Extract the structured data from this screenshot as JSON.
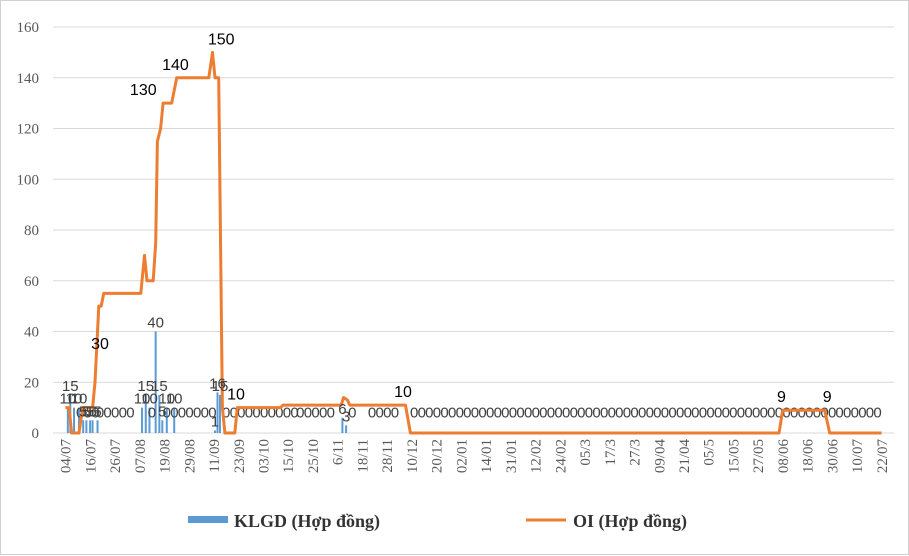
{
  "chart_data": {
    "type": "bar+line",
    "title": "",
    "xlabel": "",
    "ylabel": "",
    "ylim": [
      0,
      160
    ],
    "yticks": [
      0,
      20,
      40,
      60,
      80,
      100,
      120,
      140,
      160
    ],
    "grid": "horizontal",
    "legend_position": "bottom",
    "categories": [
      "04/07",
      "16/07",
      "26/07",
      "07/08",
      "19/08",
      "29/08",
      "11/09",
      "23/09",
      "03/10",
      "15/10",
      "25/10",
      "6/11",
      "18/11",
      "28/11",
      "10/12",
      "20/12",
      "02/01",
      "14/01",
      "31/01",
      "12/02",
      "24/02",
      "05/3",
      "17/3",
      "27/3",
      "09/04",
      "21/04",
      "05/5",
      "15/05",
      "27/05",
      "08/06",
      "18/06",
      "30/06",
      "10/07",
      "22/07"
    ],
    "colors": {
      "KLGD": "#5b9bd5",
      "OI": "#ed7d31",
      "grid": "#d9d9d9",
      "zero_label": "#595959"
    },
    "series": [
      {
        "name": "KLGD (Hợp đồng)",
        "type": "bar",
        "points": [
          {
            "x": 0.1,
            "y": 10
          },
          {
            "x": 0.2,
            "y": 15
          },
          {
            "x": 0.35,
            "y": 10
          },
          {
            "x": 0.55,
            "y": 10
          },
          {
            "x": 0.72,
            "y": 5
          },
          {
            "x": 0.85,
            "y": 5
          },
          {
            "x": 1.0,
            "y": 5
          },
          {
            "x": 1.1,
            "y": 5
          },
          {
            "x": 1.3,
            "y": 5
          },
          {
            "x": 3.1,
            "y": 10
          },
          {
            "x": 3.25,
            "y": 15
          },
          {
            "x": 3.4,
            "y": 10
          },
          {
            "x": 3.65,
            "y": 40
          },
          {
            "x": 3.8,
            "y": 15
          },
          {
            "x": 3.92,
            "y": 5
          },
          {
            "x": 4.1,
            "y": 10
          },
          {
            "x": 4.4,
            "y": 10
          },
          {
            "x": 6.05,
            "y": 1
          },
          {
            "x": 6.15,
            "y": 16
          },
          {
            "x": 6.25,
            "y": 15
          },
          {
            "x": 11.2,
            "y": 6
          },
          {
            "x": 11.35,
            "y": 3
          }
        ],
        "labels": [
          "10",
          "15",
          "10",
          "10",
          "5",
          "5",
          "5",
          "5",
          "5",
          "10",
          "15",
          "10",
          "40",
          "15",
          "5",
          "10",
          "10",
          "1",
          "16",
          "15",
          "6",
          "3"
        ]
      },
      {
        "name": "OI (Hợp đồng)",
        "type": "line",
        "points": [
          {
            "x": 0.0,
            "y": 10
          },
          {
            "x": 0.15,
            "y": 10
          },
          {
            "x": 0.25,
            "y": 0
          },
          {
            "x": 0.55,
            "y": 0
          },
          {
            "x": 0.7,
            "y": 10
          },
          {
            "x": 1.1,
            "y": 10
          },
          {
            "x": 1.2,
            "y": 20
          },
          {
            "x": 1.35,
            "y": 50
          },
          {
            "x": 1.45,
            "y": 50
          },
          {
            "x": 1.55,
            "y": 55
          },
          {
            "x": 3.05,
            "y": 55
          },
          {
            "x": 3.1,
            "y": 60
          },
          {
            "x": 3.2,
            "y": 70
          },
          {
            "x": 3.3,
            "y": 60
          },
          {
            "x": 3.55,
            "y": 60
          },
          {
            "x": 3.65,
            "y": 75
          },
          {
            "x": 3.72,
            "y": 115
          },
          {
            "x": 3.85,
            "y": 120
          },
          {
            "x": 3.95,
            "y": 130
          },
          {
            "x": 4.3,
            "y": 130
          },
          {
            "x": 4.5,
            "y": 140
          },
          {
            "x": 5.8,
            "y": 140
          },
          {
            "x": 5.95,
            "y": 150
          },
          {
            "x": 6.05,
            "y": 140
          },
          {
            "x": 6.2,
            "y": 140
          },
          {
            "x": 6.35,
            "y": 10
          },
          {
            "x": 6.45,
            "y": 0
          },
          {
            "x": 6.85,
            "y": 0
          },
          {
            "x": 6.95,
            "y": 10
          },
          {
            "x": 8.7,
            "y": 10
          },
          {
            "x": 8.8,
            "y": 11
          },
          {
            "x": 11.15,
            "y": 11
          },
          {
            "x": 11.25,
            "y": 14
          },
          {
            "x": 11.4,
            "y": 13
          },
          {
            "x": 11.5,
            "y": 11
          },
          {
            "x": 13.75,
            "y": 11
          },
          {
            "x": 13.95,
            "y": 0
          },
          {
            "x": 28.85,
            "y": 0
          },
          {
            "x": 29.0,
            "y": 9
          },
          {
            "x": 30.7,
            "y": 9
          },
          {
            "x": 30.9,
            "y": 0
          },
          {
            "x": 33.0,
            "y": 0
          }
        ],
        "labels": [
          {
            "text": "10",
            "x": 6.9,
            "y": 10
          },
          {
            "text": "30",
            "x": 1.4,
            "y": 30
          },
          {
            "text": "130",
            "x": 3.15,
            "y": 130
          },
          {
            "text": "140",
            "x": 4.45,
            "y": 140
          },
          {
            "text": "150",
            "x": 6.3,
            "y": 150
          },
          {
            "text": "10",
            "x": 13.65,
            "y": 11
          },
          {
            "text": "9",
            "x": 28.95,
            "y": 9
          },
          {
            "text": "9",
            "x": 30.8,
            "y": 9
          }
        ]
      }
    ],
    "zero_labels": {
      "text": "0",
      "segments": [
        [
          0.6,
          1.3
        ],
        [
          1.4,
          2.9
        ],
        [
          3.5,
          3.6
        ],
        [
          4.1,
          6.0
        ],
        [
          6.5,
          9.4
        ],
        [
          9.5,
          11.0
        ],
        [
          11.6,
          11.9
        ],
        [
          12.4,
          13.6
        ],
        [
          14.1,
          31.1
        ],
        [
          31.3,
          32.9
        ]
      ]
    }
  }
}
